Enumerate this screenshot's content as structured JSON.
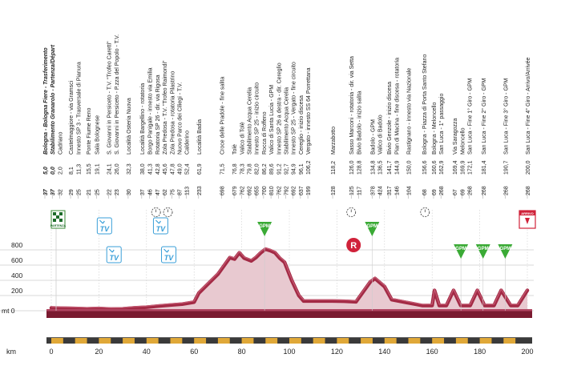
{
  "chart_data": {
    "type": "area",
    "title": "",
    "xlabel": "km",
    "ylabel": "mt",
    "xlim": [
      0,
      200
    ],
    "ylim": [
      0,
      800
    ],
    "x_ticks": [
      0,
      20,
      40,
      60,
      80,
      100,
      120,
      140,
      160,
      180,
      200
    ],
    "y_ticks": [
      0,
      200,
      400,
      600,
      800
    ],
    "y_zero_label": "mt 0",
    "grid": true,
    "series": [
      {
        "values": [
          [
            0,
            37
          ],
          [
            10,
            30
          ],
          [
            15,
            25
          ],
          [
            20,
            30
          ],
          [
            25,
            22
          ],
          [
            30,
            25
          ],
          [
            35,
            38
          ],
          [
            40,
            46
          ],
          [
            45,
            62
          ],
          [
            50,
            75
          ],
          [
            55,
            87
          ],
          [
            60,
            113
          ],
          [
            62,
            233
          ],
          [
            70,
            480
          ],
          [
            75,
            698
          ],
          [
            77,
            679
          ],
          [
            79,
            762
          ],
          [
            81,
            692
          ],
          [
            84,
            655
          ],
          [
            86,
            700
          ],
          [
            88,
            762
          ],
          [
            90,
            810
          ],
          [
            92,
            790
          ],
          [
            94,
            762
          ],
          [
            96,
            690
          ],
          [
            98,
            637
          ],
          [
            101,
            400
          ],
          [
            104,
            200
          ],
          [
            106,
            128
          ],
          [
            118,
            128
          ],
          [
            123,
            125
          ],
          [
            128,
            117
          ],
          [
            134,
            378
          ],
          [
            136,
            424
          ],
          [
            140,
            317
          ],
          [
            143,
            146
          ],
          [
            150,
            104
          ],
          [
            156,
            68
          ],
          [
            158,
            69
          ],
          [
            160,
            69
          ],
          [
            161,
            268
          ],
          [
            163,
            69
          ],
          [
            166,
            69
          ],
          [
            169,
            268
          ],
          [
            172,
            69
          ],
          [
            176,
            69
          ],
          [
            179,
            268
          ],
          [
            182,
            69
          ],
          [
            186,
            69
          ],
          [
            189,
            268
          ],
          [
            193,
            69
          ],
          [
            196,
            69
          ],
          [
            200,
            268
          ]
        ]
      }
    ],
    "profile_labels": [
      {
        "km": "5,0",
        "alt": "37",
        "name": "Bologna - Bologna Fiere - Trasferimento",
        "emph": true
      },
      {
        "km": "0,0",
        "alt": "37",
        "name": "Stabilimento Granarolo - Partenza/Départ",
        "emph": true
      },
      {
        "km": "2,0",
        "alt": "32",
        "name": "Cadriano"
      },
      {
        "km": "8,1",
        "alt": "29",
        "name": "Castelmaggiore - via Gramsci"
      },
      {
        "km": "11,3",
        "alt": "25",
        "name": "Innesto SP 3 - Trasversale di Pianura"
      },
      {
        "km": "15,5",
        "alt": "21",
        "name": "Ponte Fiume Reno"
      },
      {
        "km": "19,1",
        "alt": "25",
        "name": "Sala Bolognese"
      },
      {
        "km": "24,1",
        "alt": "22",
        "name": "S. Giovanni in Persiceto - T.V. \"Trofeo Caretti\""
      },
      {
        "km": "26,0",
        "alt": "23",
        "name": "S. Giovanni in Persiceto - P.zza del Popolo - T.V."
      },
      {
        "km": "32,3",
        "alt": "30",
        "name": "Località Osteria Nuova"
      },
      {
        "km": "38,0",
        "alt": "37",
        "name": "Località Bargellino - rotatoria"
      },
      {
        "km": "41,3",
        "alt": "46",
        "name": "Borgo Panigale - innesto via Emilia"
      },
      {
        "km": "42,8",
        "alt": "47",
        "name": "Rotatoria SP 26 - dir. via Rigosa"
      },
      {
        "km": "45,6",
        "alt": "62",
        "name": "Zola Predosa - T.V. \"Trofeo Raimondi\""
      },
      {
        "km": "47,8",
        "alt": "75",
        "name": "Zola Predosa - rotatoria Pilastrino"
      },
      {
        "km": "49,0",
        "alt": "87",
        "name": "Nuovo Parco dei Ciliegi - T.V."
      },
      {
        "km": "52,4",
        "alt": "113",
        "name": "Calderino"
      },
      {
        "km": "61,9",
        "alt": "233",
        "name": "Località Badia"
      },
      {
        "km": "71,5",
        "alt": "698",
        "name": "Croce delle Pradole - fine salita"
      },
      {
        "km": "76,8",
        "alt": "679",
        "name": "Tolè"
      },
      {
        "km": "78,3",
        "alt": "762",
        "name": "Valico di Tolè"
      },
      {
        "km": "79,8",
        "alt": "692",
        "name": "Stabilimento Acqua Cerelia"
      },
      {
        "km": "82,0",
        "alt": "655",
        "name": "Innesto SP 25 - inizio circuito"
      },
      {
        "km": "86,2",
        "alt": "700",
        "name": "Rocca di Roffeno"
      },
      {
        "km": "89,6",
        "alt": "810",
        "name": "Valico di Santa Lucia - GPM"
      },
      {
        "km": "91,2",
        "alt": "762",
        "name": "Innesto SP 26 a destra - dir. Cereglio"
      },
      {
        "km": "92,7",
        "alt": "792",
        "name": "Stabilimento Acqua Cerelia"
      },
      {
        "km": "94,9",
        "alt": "692",
        "name": "Innesto SP 25 - Vergato - fine circuito"
      },
      {
        "km": "96,1",
        "alt": "637",
        "name": "Cereglio - inizio discesa"
      },
      {
        "km": "106,2",
        "alt": "199",
        "name": "Vergato - innesto SS 64 Porrettana"
      },
      {
        "km": "118,2",
        "alt": "128",
        "name": "Marzabotto"
      },
      {
        "km": "126,0",
        "alt": "125",
        "name": "Sasso Marconi - rotatoria - dir. via Setta"
      },
      {
        "km": "128,8",
        "alt": "117",
        "name": "Bivio Badolo - inizio salita"
      },
      {
        "km": "134,8",
        "alt": "378",
        "name": "Badolo - GPM"
      },
      {
        "km": "136,5",
        "alt": "424",
        "name": "Valico di Badolo"
      },
      {
        "km": "141,7",
        "alt": "317",
        "name": "Bivio Genzole - inizio discesa"
      },
      {
        "km": "144,9",
        "alt": "146",
        "name": "Pian di Macina - fine discesa - rotatoria"
      },
      {
        "km": "150,0",
        "alt": "104",
        "name": "Rastignano - innesto via Nazionale"
      },
      {
        "km": "156,6",
        "alt": "68",
        "name": "Bologna - Piazza di Porta Santo Stefano"
      },
      {
        "km": "160,6",
        "alt": "69",
        "name": "Bologna - Meloncello"
      },
      {
        "km": "162,9",
        "alt": "268",
        "name": "San Luca - 1° passaggio"
      },
      {
        "km": "169,4",
        "alt": "67",
        "name": "Via Saragozza"
      },
      {
        "km": "169,9",
        "alt": "69",
        "name": "Meloncello"
      },
      {
        "km": "172,1",
        "alt": "268",
        "name": "San Luca - Fine 1° Giro - GPM"
      },
      {
        "km": "181,4",
        "alt": "268",
        "name": "San Luca - Fine 2° Giro - GPM"
      },
      {
        "km": "190,7",
        "alt": "268",
        "name": "San Luca - Fine 3° Giro - GPM"
      },
      {
        "km": "200,0",
        "alt": "268",
        "name": "San Luca - Fine 4° Giro - Arrivo/Arrivée"
      }
    ],
    "markers": [
      {
        "type": "start-flag",
        "km": 0,
        "label": "PARTENZA"
      },
      {
        "type": "tv",
        "km": 22,
        "label": "TV",
        "row": 0
      },
      {
        "type": "tv",
        "km": 26,
        "label": "TV",
        "row": 1
      },
      {
        "type": "tv",
        "km": 45.6,
        "label": "TV",
        "row": 0
      },
      {
        "type": "tv",
        "km": 49,
        "label": "TV",
        "row": 1
      },
      {
        "type": "timer",
        "km": 44
      },
      {
        "type": "timer",
        "km": 49
      },
      {
        "type": "timer",
        "km": 126
      },
      {
        "type": "timer",
        "km": 157
      },
      {
        "type": "gpm",
        "km": 89.6,
        "label": "GPM"
      },
      {
        "type": "gpm",
        "km": 134.8,
        "label": "GPM"
      },
      {
        "type": "gpm",
        "km": 172.1,
        "label": "GPM"
      },
      {
        "type": "gpm",
        "km": 181.4,
        "label": "GPM"
      },
      {
        "type": "gpm",
        "km": 190.7,
        "label": "GPM"
      },
      {
        "type": "feed",
        "km": 127,
        "label": "R"
      },
      {
        "type": "finish",
        "km": 200,
        "label": "ARRIVO"
      }
    ],
    "colors": {
      "profile_fill": "#e8c9d0",
      "profile_line": "#a32a45",
      "profile_dark": "#7a1a30",
      "grid": "#cdcdcd",
      "ground": "#7a1a30",
      "km_band": "#e0a838",
      "tv": "#3a9fd8",
      "gpm": "#3aaa35",
      "feed": "#d0223a",
      "text": "#222222"
    }
  }
}
